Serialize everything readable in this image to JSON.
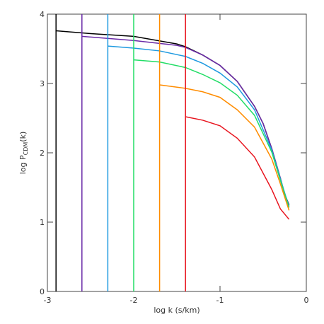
{
  "chart_data": {
    "type": "line",
    "xlabel": "log k (s/km)",
    "ylabel": [
      "log P",
      "CDM",
      "(k)"
    ],
    "xlim": [
      -3,
      0
    ],
    "ylim": [
      0,
      4
    ],
    "xticks": [
      -3,
      -2,
      -1,
      0
    ],
    "yticks": [
      0,
      1,
      2,
      3,
      4
    ],
    "series": [
      {
        "color": "#000000",
        "x": [
          -2.9,
          -2.5,
          -2,
          -1.5,
          -1.4,
          -1.2,
          -1,
          -0.8,
          -0.6,
          -0.5,
          -0.4,
          -0.3,
          -0.25,
          -0.2
        ],
        "values": [
          3.76,
          3.72,
          3.68,
          3.57,
          3.53,
          3.41,
          3.26,
          3.03,
          2.67,
          2.42,
          2.06,
          1.63,
          1.4,
          1.25
        ]
      },
      {
        "color": "#6a2aa8",
        "x": [
          -2.6,
          -2,
          -1.5,
          -1.4,
          -1.2,
          -1,
          -0.8,
          -0.6,
          -0.5,
          -0.4,
          -0.3,
          -0.25,
          -0.2
        ],
        "values": [
          3.68,
          3.62,
          3.55,
          3.52,
          3.41,
          3.26,
          3.03,
          2.67,
          2.42,
          2.06,
          1.63,
          1.4,
          1.24
        ]
      },
      {
        "color": "#1e9ae0",
        "x": [
          -2.3,
          -2,
          -1.7,
          -1.4,
          -1.2,
          -1,
          -0.8,
          -0.6,
          -0.4,
          -0.3,
          -0.2
        ],
        "values": [
          3.54,
          3.51,
          3.47,
          3.39,
          3.29,
          3.15,
          2.95,
          2.62,
          2.04,
          1.62,
          1.22
        ]
      },
      {
        "color": "#22dd66",
        "x": [
          -2,
          -1.7,
          -1.4,
          -1.2,
          -1,
          -0.8,
          -0.6,
          -0.4,
          -0.3,
          -0.2
        ],
        "values": [
          3.34,
          3.31,
          3.23,
          3.13,
          3.01,
          2.83,
          2.54,
          2.01,
          1.6,
          1.21
        ]
      },
      {
        "color": "#ff8c00",
        "x": [
          -1.7,
          -1.4,
          -1.2,
          -1,
          -0.8,
          -0.6,
          -0.4,
          -0.3,
          -0.2
        ],
        "values": [
          2.98,
          2.93,
          2.88,
          2.8,
          2.62,
          2.37,
          1.91,
          1.55,
          1.17
        ]
      },
      {
        "color": "#e8141e",
        "x": [
          -1.4,
          -1.2,
          -1,
          -0.8,
          -0.6,
          -0.4,
          -0.3,
          -0.2
        ],
        "values": [
          2.52,
          2.47,
          2.39,
          2.21,
          1.94,
          1.47,
          1.19,
          1.04
        ]
      }
    ]
  }
}
